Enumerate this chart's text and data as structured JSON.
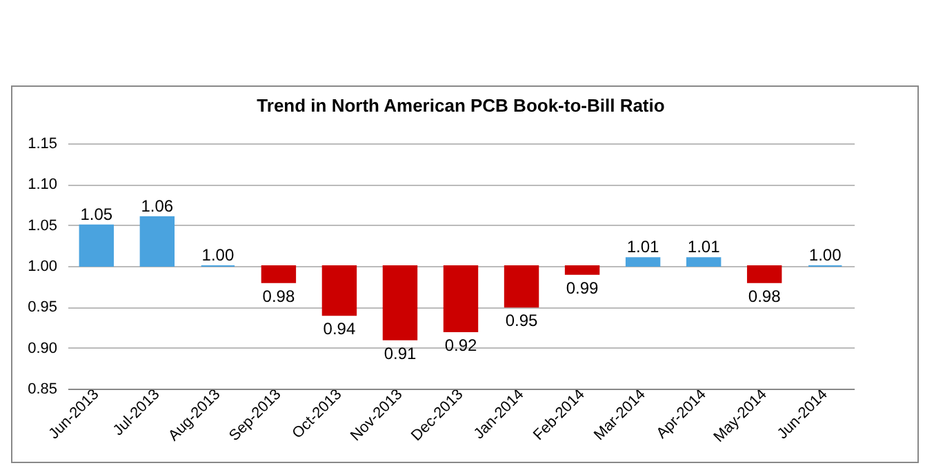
{
  "chart_data": {
    "type": "bar",
    "title": "Trend in North American PCB Book-to-Bill Ratio",
    "categories": [
      "Jun-2013",
      "Jul-2013",
      "Aug-2013",
      "Sep-2013",
      "Oct-2013",
      "Nov-2013",
      "Dec-2013",
      "Jan-2014",
      "Feb-2014",
      "Mar-2014",
      "Apr-2014",
      "May-2014",
      "Jun-2014"
    ],
    "base": [
      1,
      1,
      1,
      1,
      1,
      1,
      1,
      1,
      1,
      1,
      1,
      1,
      1
    ],
    "values": [
      0.05,
      0.06,
      0,
      -0.02,
      -0.06,
      -0.09,
      -0.08,
      -0.05,
      -0.01,
      0.01,
      0.01,
      -0.02,
      0
    ],
    "value_labels": [
      "1.05",
      "1.06",
      "1.00",
      "0.98",
      "0.94",
      "0.91",
      "0.92",
      "0.95",
      "0.99",
      "1.01",
      "1.01",
      "0.98",
      "1.00"
    ],
    "colors": [
      "#4aa3df",
      "#4aa3df",
      "#4aa3df",
      "#cc0000",
      "#cc0000",
      "#cc0000",
      "#cc0000",
      "#cc0000",
      "#cc0000",
      "#4aa3df",
      "#4aa3df",
      "#cc0000",
      "#4aa3df"
    ],
    "ylim": [
      0.85,
      1.15
    ],
    "yticks": [
      0.85,
      {
        "value": 0.9,
        "label": "0.90"
      },
      0.95,
      {
        "value": 1,
        "label": "1.00"
      },
      1.05,
      {
        "value": 1.1,
        "label": "1.10"
      },
      1.15
    ],
    "grid": "y"
  }
}
